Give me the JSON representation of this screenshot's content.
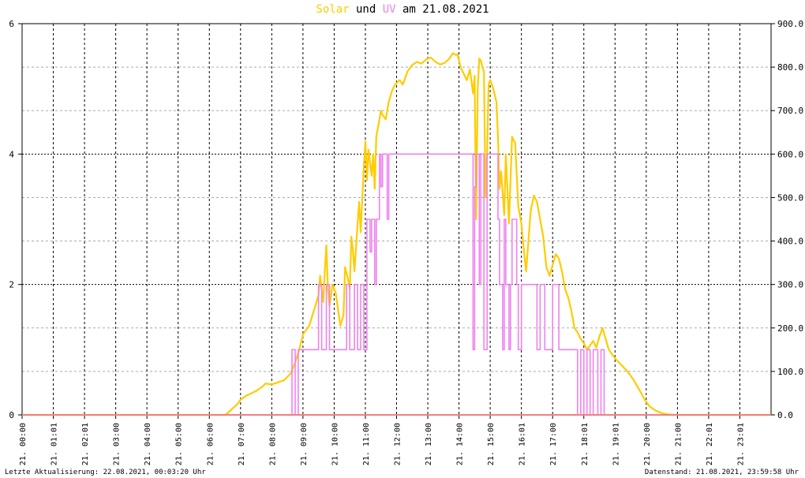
{
  "title": {
    "solar_word": "Solar",
    "und_word": " und ",
    "uv_word": "UV",
    "rest": " am 21.08.2021",
    "solar_color": "#ffcc00",
    "uv_color": "#ee82ee",
    "text_color": "#000000"
  },
  "footer": {
    "left": "Letzte Aktualisierung: 22.08.2021, 00:03:20 Uhr",
    "right": "Datenstand: 21.08.2021, 23:59:58 Uhr"
  },
  "chart_data": {
    "type": "line",
    "x_unit": "hour of day (21.08.2021)",
    "xlim": [
      0,
      24
    ],
    "x_tick_labels": [
      "21. 00:00",
      "21. 01:01",
      "21. 02:01",
      "21. 03:00",
      "21. 04:00",
      "21. 05:00",
      "21. 06:00",
      "21. 07:00",
      "21. 08:00",
      "21. 09:00",
      "21. 10:00",
      "21. 11:00",
      "21. 12:00",
      "21. 13:00",
      "21. 14:00",
      "21. 15:00",
      "21. 16:01",
      "21. 17:00",
      "21. 18:01",
      "21. 19:01",
      "21. 20:00",
      "21. 21:00",
      "21. 22:01",
      "21. 23:01"
    ],
    "y_left": {
      "lim": [
        0,
        6
      ],
      "ticks": [
        "0",
        "2",
        "4",
        "6"
      ]
    },
    "y_right": {
      "lim": [
        0,
        900
      ],
      "ticks": [
        "0.0",
        "100.0",
        "200.0",
        "300.0",
        "400.0",
        "500.0",
        "600.0",
        "700.0",
        "800.0",
        "900.0"
      ]
    },
    "grid": true,
    "legend": "in title",
    "series": [
      {
        "name": "Solar",
        "axis": "right",
        "color": "#ffcc00",
        "points": [
          [
            0,
            0
          ],
          [
            6.5,
            0
          ],
          [
            6.6,
            5
          ],
          [
            6.7,
            12
          ],
          [
            6.9,
            25
          ],
          [
            7.0,
            35
          ],
          [
            7.2,
            45
          ],
          [
            7.5,
            55
          ],
          [
            7.7,
            65
          ],
          [
            7.8,
            72
          ],
          [
            8.0,
            70
          ],
          [
            8.2,
            75
          ],
          [
            8.4,
            80
          ],
          [
            8.6,
            95
          ],
          [
            8.75,
            120
          ],
          [
            8.9,
            155
          ],
          [
            9.0,
            185
          ],
          [
            9.2,
            205
          ],
          [
            9.35,
            240
          ],
          [
            9.5,
            275
          ],
          [
            9.55,
            320
          ],
          [
            9.65,
            260
          ],
          [
            9.7,
            330
          ],
          [
            9.75,
            390
          ],
          [
            9.8,
            290
          ],
          [
            9.85,
            250
          ],
          [
            9.95,
            300
          ],
          [
            10.05,
            280
          ],
          [
            10.15,
            230
          ],
          [
            10.2,
            205
          ],
          [
            10.3,
            230
          ],
          [
            10.35,
            340
          ],
          [
            10.45,
            310
          ],
          [
            10.5,
            290
          ],
          [
            10.55,
            410
          ],
          [
            10.6,
            380
          ],
          [
            10.65,
            330
          ],
          [
            10.75,
            440
          ],
          [
            10.8,
            490
          ],
          [
            10.85,
            420
          ],
          [
            10.95,
            570
          ],
          [
            11.0,
            630
          ],
          [
            11.05,
            540
          ],
          [
            11.1,
            610
          ],
          [
            11.2,
            550
          ],
          [
            11.25,
            600
          ],
          [
            11.3,
            520
          ],
          [
            11.35,
            640
          ],
          [
            11.45,
            680
          ],
          [
            11.5,
            700
          ],
          [
            11.55,
            690
          ],
          [
            11.65,
            680
          ],
          [
            11.75,
            720
          ],
          [
            11.85,
            745
          ],
          [
            11.95,
            760
          ],
          [
            12.1,
            770
          ],
          [
            12.2,
            760
          ],
          [
            12.35,
            790
          ],
          [
            12.5,
            805
          ],
          [
            12.65,
            812
          ],
          [
            12.8,
            808
          ],
          [
            12.95,
            818
          ],
          [
            13.1,
            822
          ],
          [
            13.25,
            812
          ],
          [
            13.4,
            806
          ],
          [
            13.55,
            810
          ],
          [
            13.7,
            820
          ],
          [
            13.8,
            832
          ],
          [
            13.9,
            828
          ],
          [
            13.95,
            830
          ],
          [
            14.0,
            815
          ],
          [
            14.05,
            800
          ],
          [
            14.15,
            785
          ],
          [
            14.25,
            770
          ],
          [
            14.35,
            795
          ],
          [
            14.45,
            740
          ],
          [
            14.5,
            780
          ],
          [
            14.55,
            450
          ],
          [
            14.6,
            750
          ],
          [
            14.65,
            820
          ],
          [
            14.7,
            815
          ],
          [
            14.75,
            800
          ],
          [
            14.8,
            790
          ],
          [
            14.85,
            500
          ],
          [
            14.9,
            600
          ],
          [
            14.95,
            760
          ],
          [
            15.0,
            770
          ],
          [
            15.1,
            750
          ],
          [
            15.2,
            720
          ],
          [
            15.25,
            640
          ],
          [
            15.3,
            520
          ],
          [
            15.35,
            560
          ],
          [
            15.45,
            460
          ],
          [
            15.5,
            600
          ],
          [
            15.55,
            520
          ],
          [
            15.6,
            440
          ],
          [
            15.7,
            640
          ],
          [
            15.8,
            625
          ],
          [
            15.9,
            480
          ],
          [
            16.0,
            440
          ],
          [
            16.05,
            400
          ],
          [
            16.15,
            330
          ],
          [
            16.3,
            470
          ],
          [
            16.4,
            505
          ],
          [
            16.5,
            490
          ],
          [
            16.6,
            450
          ],
          [
            16.7,
            410
          ],
          [
            16.8,
            340
          ],
          [
            16.9,
            320
          ],
          [
            17.0,
            345
          ],
          [
            17.1,
            370
          ],
          [
            17.2,
            360
          ],
          [
            17.3,
            330
          ],
          [
            17.4,
            290
          ],
          [
            17.5,
            270
          ],
          [
            17.6,
            240
          ],
          [
            17.7,
            200
          ],
          [
            17.8,
            190
          ],
          [
            17.9,
            175
          ],
          [
            18.0,
            165
          ],
          [
            18.1,
            150
          ],
          [
            18.2,
            160
          ],
          [
            18.3,
            170
          ],
          [
            18.4,
            155
          ],
          [
            18.5,
            180
          ],
          [
            18.6,
            200
          ],
          [
            18.7,
            175
          ],
          [
            18.8,
            150
          ],
          [
            18.9,
            140
          ],
          [
            19.0,
            130
          ],
          [
            19.2,
            115
          ],
          [
            19.4,
            100
          ],
          [
            19.6,
            80
          ],
          [
            19.8,
            55
          ],
          [
            19.95,
            35
          ],
          [
            20.1,
            20
          ],
          [
            20.3,
            10
          ],
          [
            20.5,
            4
          ],
          [
            20.7,
            1
          ],
          [
            21.0,
            0
          ],
          [
            24,
            0
          ]
        ]
      },
      {
        "name": "UV",
        "axis": "left",
        "color": "#ee82ee",
        "points": [
          [
            0,
            0
          ],
          [
            6.7,
            0
          ],
          [
            8.65,
            0
          ],
          [
            8.65,
            1
          ],
          [
            8.75,
            1
          ],
          [
            8.75,
            0
          ],
          [
            8.85,
            0
          ],
          [
            8.85,
            1
          ],
          [
            9.5,
            1
          ],
          [
            9.5,
            2
          ],
          [
            9.6,
            2
          ],
          [
            9.6,
            1
          ],
          [
            9.75,
            1
          ],
          [
            9.75,
            2
          ],
          [
            9.85,
            2
          ],
          [
            9.85,
            1
          ],
          [
            10.4,
            1
          ],
          [
            10.4,
            2
          ],
          [
            10.5,
            2
          ],
          [
            10.5,
            1
          ],
          [
            10.65,
            1
          ],
          [
            10.65,
            2
          ],
          [
            10.75,
            2
          ],
          [
            10.75,
            1
          ],
          [
            10.85,
            1
          ],
          [
            10.85,
            2
          ],
          [
            10.95,
            2
          ],
          [
            10.95,
            1
          ],
          [
            11.05,
            1
          ],
          [
            11.05,
            3
          ],
          [
            11.15,
            3
          ],
          [
            11.15,
            2.5
          ],
          [
            11.2,
            2.5
          ],
          [
            11.2,
            3
          ],
          [
            11.3,
            3
          ],
          [
            11.3,
            2
          ],
          [
            11.35,
            2
          ],
          [
            11.35,
            3
          ],
          [
            11.45,
            3
          ],
          [
            11.45,
            4
          ],
          [
            11.5,
            4
          ],
          [
            11.5,
            3.5
          ],
          [
            11.55,
            3.5
          ],
          [
            11.55,
            4
          ],
          [
            11.7,
            4
          ],
          [
            11.7,
            3
          ],
          [
            11.75,
            3
          ],
          [
            11.75,
            4
          ],
          [
            14.45,
            4
          ],
          [
            14.45,
            1
          ],
          [
            14.5,
            1
          ],
          [
            14.5,
            3.5
          ],
          [
            14.55,
            3.5
          ],
          [
            14.55,
            4
          ],
          [
            14.65,
            4
          ],
          [
            14.65,
            2
          ],
          [
            14.7,
            2
          ],
          [
            14.7,
            4
          ],
          [
            14.8,
            4
          ],
          [
            14.8,
            1
          ],
          [
            14.9,
            1
          ],
          [
            14.9,
            4
          ],
          [
            15.25,
            4
          ],
          [
            15.25,
            3
          ],
          [
            15.3,
            3
          ],
          [
            15.3,
            2
          ],
          [
            15.4,
            2
          ],
          [
            15.4,
            1
          ],
          [
            15.45,
            1
          ],
          [
            15.45,
            3
          ],
          [
            15.5,
            3
          ],
          [
            15.5,
            2
          ],
          [
            15.6,
            2
          ],
          [
            15.6,
            1
          ],
          [
            15.65,
            1
          ],
          [
            15.65,
            2
          ],
          [
            15.7,
            2
          ],
          [
            15.7,
            3
          ],
          [
            15.85,
            3
          ],
          [
            15.85,
            2
          ],
          [
            15.9,
            2
          ],
          [
            15.9,
            1
          ],
          [
            16.0,
            1
          ],
          [
            16.0,
            2
          ],
          [
            16.5,
            2
          ],
          [
            16.5,
            1
          ],
          [
            16.6,
            1
          ],
          [
            16.6,
            2
          ],
          [
            16.75,
            2
          ],
          [
            16.75,
            1
          ],
          [
            17.0,
            1
          ],
          [
            17.0,
            2
          ],
          [
            17.2,
            2
          ],
          [
            17.2,
            1
          ],
          [
            17.8,
            1
          ],
          [
            17.8,
            0
          ],
          [
            17.9,
            0
          ],
          [
            17.9,
            1
          ],
          [
            18.0,
            1
          ],
          [
            18.0,
            0
          ],
          [
            18.1,
            0
          ],
          [
            18.1,
            1
          ],
          [
            18.2,
            1
          ],
          [
            18.2,
            0
          ],
          [
            18.3,
            0
          ],
          [
            18.3,
            1
          ],
          [
            18.45,
            1
          ],
          [
            18.45,
            0
          ],
          [
            18.55,
            0
          ],
          [
            18.55,
            1
          ],
          [
            18.65,
            1
          ],
          [
            18.65,
            0
          ],
          [
            20.0,
            0
          ],
          [
            24,
            0
          ]
        ]
      },
      {
        "name": "",
        "axis": "right",
        "color": "#f08080",
        "points": [
          [
            0,
            0
          ],
          [
            24,
            0
          ]
        ]
      }
    ]
  }
}
